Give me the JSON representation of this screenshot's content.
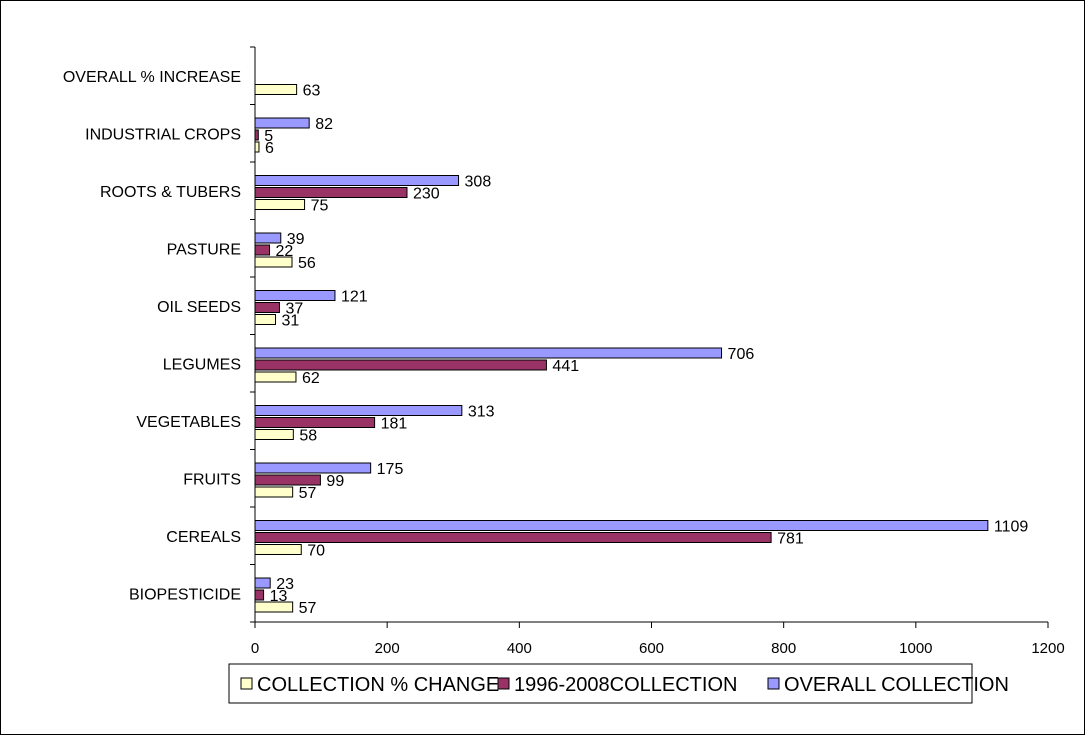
{
  "chart_data": {
    "type": "bar",
    "orientation": "horizontal",
    "title": "",
    "xlabel": "",
    "ylabel": "",
    "xlim": [
      0,
      1200
    ],
    "x_ticks": [
      0,
      200,
      400,
      600,
      800,
      1000,
      1200
    ],
    "grid": false,
    "legend_position": "bottom-left",
    "categories": [
      "BIOPESTICIDE",
      "CEREALS",
      "FRUITS",
      "VEGETABLES",
      "LEGUMES",
      "OIL SEEDS",
      "PASTURE",
      "ROOTS & TUBERS",
      "INDUSTRIAL CROPS",
      "OVERALL % INCREASE"
    ],
    "series": [
      {
        "name": "COLLECTION % CHANGE",
        "color": "#ffffcc",
        "values": [
          57,
          70,
          57,
          58,
          62,
          31,
          56,
          75,
          6,
          63
        ]
      },
      {
        "name": "1996-2008COLLECTION",
        "color": "#993366",
        "values": [
          13,
          781,
          99,
          181,
          441,
          37,
          22,
          230,
          5,
          null
        ]
      },
      {
        "name": "OVERALL COLLECTION",
        "color": "#9999ff",
        "values": [
          23,
          1109,
          175,
          313,
          706,
          121,
          39,
          308,
          82,
          null
        ]
      }
    ]
  }
}
